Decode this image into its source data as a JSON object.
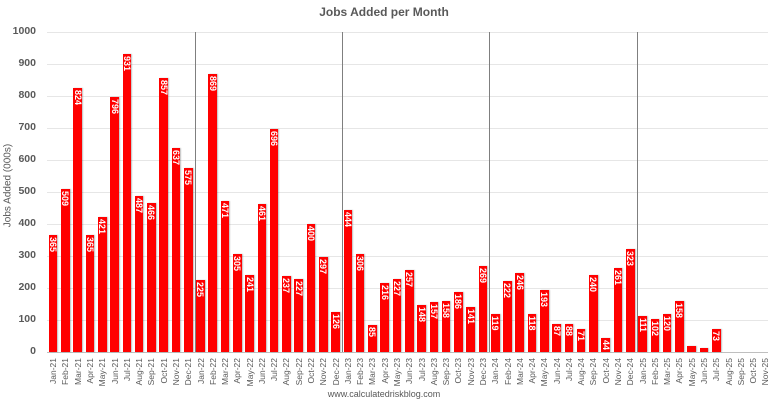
{
  "chart_data": {
    "type": "bar",
    "title": "Jobs Added per Month",
    "xlabel": "",
    "ylabel": "Jobs Added (000s)",
    "ylim": [
      0,
      1000
    ],
    "yticks": [
      0,
      100,
      200,
      300,
      400,
      500,
      600,
      700,
      800,
      900,
      1000
    ],
    "grid": true,
    "legend": null,
    "bar_color": "#ff0000",
    "year_separators_after": [
      "Dec-21",
      "Dec-22",
      "Dec-23",
      "Dec-24"
    ],
    "categories": [
      "Jan-21",
      "Feb-21",
      "Mar-21",
      "Apr-21",
      "May-21",
      "Jun-21",
      "Jul-21",
      "Aug-21",
      "Sep-21",
      "Oct-21",
      "Nov-21",
      "Dec-21",
      "Jan-22",
      "Feb-22",
      "Mar-22",
      "Apr-22",
      "May-22",
      "Jun-22",
      "Jul-22",
      "Aug-22",
      "Sep-22",
      "Oct-22",
      "Nov-22",
      "Dec-22",
      "Jan-23",
      "Feb-23",
      "Mar-23",
      "Apr-23",
      "May-23",
      "Jun-23",
      "Jul-23",
      "Aug-23",
      "Sep-23",
      "Oct-23",
      "Nov-23",
      "Dec-23",
      "Jan-24",
      "Feb-24",
      "Mar-24",
      "Apr-24",
      "May-24",
      "Jun-24",
      "Jul-24",
      "Aug-24",
      "Sep-24",
      "Oct-24",
      "Nov-24",
      "Dec-24",
      "Jan-25",
      "Feb-25",
      "Mar-25",
      "Apr-25",
      "May-25",
      "Jun-25",
      "Jul-25",
      "Aug-25",
      "Sep-25",
      "Oct-25",
      "Nov-25"
    ],
    "values": [
      365,
      509,
      824,
      365,
      421,
      796,
      931,
      487,
      466,
      857,
      637,
      575,
      225,
      869,
      471,
      305,
      241,
      461,
      696,
      237,
      227,
      400,
      297,
      126,
      444,
      306,
      85,
      216,
      227,
      257,
      148,
      157,
      158,
      186,
      141,
      269,
      119,
      222,
      246,
      118,
      193,
      87,
      88,
      71,
      240,
      44,
      261,
      323,
      111,
      102,
      120,
      158,
      19,
      13,
      73,
      null,
      null,
      null,
      null
    ],
    "data_labels": [
      "365",
      "509",
      "824",
      "365",
      "421",
      "796",
      "931",
      "487",
      "466",
      "857",
      "637",
      "575",
      "225",
      "869",
      "471",
      "305",
      "241",
      "461",
      "696",
      "237",
      "227",
      "400",
      "297",
      "126",
      "444",
      "306",
      "85",
      "216",
      "227",
      "257",
      "148",
      "157",
      "158",
      "186",
      "141",
      "269",
      "119",
      "222",
      "246",
      "118",
      "193",
      "87",
      "88",
      "71",
      "240",
      "44",
      "261",
      "323",
      "111",
      "102",
      "120",
      "158",
      "",
      "",
      "73",
      "",
      "",
      "",
      ""
    ]
  },
  "footer": "www.calculatedriskblog.com"
}
